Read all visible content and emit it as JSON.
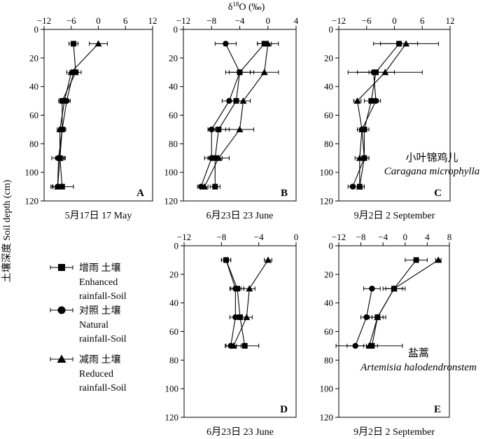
{
  "figure": {
    "top_axis_title": "δ18O (‰)",
    "y_axis_title": "土壤深度 Soil depth (cm)"
  },
  "legend": {
    "items": [
      {
        "marker": "square",
        "lines": [
          "增雨 土壤",
          "Enhanced",
          "rainfall-Soil"
        ]
      },
      {
        "marker": "circle",
        "lines": [
          "对照 土壤",
          "Natural",
          "rainfall-Soil"
        ]
      },
      {
        "marker": "triangle",
        "lines": [
          "减雨 土壤",
          "Reduced",
          "rainfall-Soil"
        ]
      }
    ]
  },
  "species": [
    {
      "cn": "小叶锦鸡儿",
      "latin": "Caragana microphylla"
    },
    {
      "cn": "盐蒿",
      "latin": "Artemisia halodendronstem"
    }
  ],
  "chart_data": [
    {
      "type": "line",
      "panel": "A",
      "caption": "5月17日 17 May",
      "xlim": [
        -12,
        12
      ],
      "xticks": [
        -12,
        -6,
        0,
        6,
        12
      ],
      "ylim": [
        0,
        120
      ],
      "yticks": [
        0,
        20,
        40,
        60,
        80,
        100,
        120
      ],
      "series": [
        {
          "marker": "square",
          "points": [
            {
              "depth": 10,
              "value": -5.5,
              "err": 1.0
            },
            {
              "depth": 30,
              "value": -5.0,
              "err": 1.2
            },
            {
              "depth": 50,
              "value": -8.0,
              "err": 0.8
            },
            {
              "depth": 70,
              "value": -8.0,
              "err": 0.8
            },
            {
              "depth": 90,
              "value": -8.5,
              "err": 1.0
            },
            {
              "depth": 110,
              "value": -8.0,
              "err": 2.5
            }
          ]
        },
        {
          "marker": "circle",
          "points": [
            {
              "depth": 30,
              "value": -5.5,
              "err": 0.8
            },
            {
              "depth": 50,
              "value": -7.0,
              "err": 0.8
            },
            {
              "depth": 70,
              "value": -8.0,
              "err": 0.6
            },
            {
              "depth": 90,
              "value": -8.8,
              "err": 1.5
            },
            {
              "depth": 110,
              "value": -9.0,
              "err": 1.0
            }
          ]
        },
        {
          "marker": "triangle",
          "points": [
            {
              "depth": 10,
              "value": 0.0,
              "err": 2.0
            },
            {
              "depth": 30,
              "value": -6.0,
              "err": 1.0
            },
            {
              "depth": 50,
              "value": -7.5,
              "err": 0.8
            },
            {
              "depth": 70,
              "value": -8.5,
              "err": 0.6
            },
            {
              "depth": 90,
              "value": -8.5,
              "err": 0.8
            },
            {
              "depth": 110,
              "value": -9.0,
              "err": 1.2
            }
          ]
        }
      ]
    },
    {
      "type": "line",
      "panel": "B",
      "caption": "6月23日 23 June",
      "xlim": [
        -12,
        4
      ],
      "xticks": [
        -12,
        -8,
        -4,
        0,
        4
      ],
      "ylim": [
        0,
        120
      ],
      "yticks": [
        0,
        20,
        40,
        60,
        80,
        100,
        120
      ],
      "series": [
        {
          "marker": "square",
          "points": [
            {
              "depth": 10,
              "value": -0.5,
              "err": 1.0
            },
            {
              "depth": 30,
              "value": -4.0,
              "err": 2.0
            },
            {
              "depth": 50,
              "value": -4.5,
              "err": 1.0
            },
            {
              "depth": 70,
              "value": -7.0,
              "err": 1.5
            },
            {
              "depth": 90,
              "value": -7.5,
              "err": 1.0
            },
            {
              "depth": 110,
              "value": -7.5,
              "err": 0.7
            }
          ]
        },
        {
          "marker": "circle",
          "points": [
            {
              "depth": 10,
              "value": -6.0,
              "err": 1.5
            },
            {
              "depth": 30,
              "value": -4.0,
              "err": 1.5
            },
            {
              "depth": 50,
              "value": -5.5,
              "err": 1.0
            },
            {
              "depth": 70,
              "value": -8.0,
              "err": 0.5
            },
            {
              "depth": 90,
              "value": -8.0,
              "err": 1.0
            },
            {
              "depth": 110,
              "value": -9.5,
              "err": 0.5
            }
          ]
        },
        {
          "marker": "triangle",
          "points": [
            {
              "depth": 10,
              "value": 0.0,
              "err": 1.5
            },
            {
              "depth": 30,
              "value": -0.5,
              "err": 2.0
            },
            {
              "depth": 50,
              "value": -3.5,
              "err": 1.0
            },
            {
              "depth": 70,
              "value": -4.0,
              "err": 2.0
            },
            {
              "depth": 90,
              "value": -7.0,
              "err": 1.5
            },
            {
              "depth": 110,
              "value": -9.0,
              "err": 0.5
            }
          ]
        }
      ]
    },
    {
      "type": "line",
      "panel": "C",
      "caption": "9月2日 2 September",
      "xlim": [
        -12,
        12
      ],
      "xticks": [
        -12,
        -6,
        0,
        6,
        12
      ],
      "ylim": [
        0,
        120
      ],
      "yticks": [
        0,
        20,
        40,
        60,
        80,
        100,
        120
      ],
      "series": [
        {
          "marker": "square",
          "points": [
            {
              "depth": 10,
              "value": 1.0,
              "err": 4.0
            },
            {
              "depth": 30,
              "value": -4.0,
              "err": 4.0
            },
            {
              "depth": 50,
              "value": -5.0,
              "err": 1.5
            },
            {
              "depth": 70,
              "value": -6.5,
              "err": 1.0
            },
            {
              "depth": 90,
              "value": -6.5,
              "err": 1.0
            },
            {
              "depth": 110,
              "value": -7.5,
              "err": 1.0
            }
          ]
        },
        {
          "marker": "circle",
          "points": [
            {
              "depth": 30,
              "value": -4.5,
              "err": 1.0
            },
            {
              "depth": 50,
              "value": -4.0,
              "err": 1.0
            },
            {
              "depth": 70,
              "value": -7.0,
              "err": 1.0
            },
            {
              "depth": 90,
              "value": -6.5,
              "err": 1.0
            },
            {
              "depth": 110,
              "value": -9.0,
              "err": 1.0
            }
          ]
        },
        {
          "marker": "triangle",
          "points": [
            {
              "depth": 10,
              "value": 2.5,
              "err": 7.0
            },
            {
              "depth": 30,
              "value": -2.0,
              "err": 8.0
            },
            {
              "depth": 50,
              "value": -8.0,
              "err": 0.8
            },
            {
              "depth": 70,
              "value": -7.0,
              "err": 1.0
            },
            {
              "depth": 90,
              "value": -7.5,
              "err": 1.0
            },
            {
              "depth": 110,
              "value": -7.5,
              "err": 1.0
            }
          ]
        }
      ]
    },
    {
      "type": "line",
      "panel": "D",
      "caption": "6月23日 23 June",
      "xlim": [
        -12,
        0
      ],
      "xticks": [
        -12,
        -8,
        -4,
        0
      ],
      "ylim": [
        0,
        120
      ],
      "yticks": [
        0,
        20,
        40,
        60,
        80,
        100,
        120
      ],
      "series": [
        {
          "marker": "square",
          "points": [
            {
              "depth": 10,
              "value": -7.5,
              "err": 0.5
            },
            {
              "depth": 30,
              "value": -6.3,
              "err": 0.7
            },
            {
              "depth": 50,
              "value": -6.0,
              "err": 0.7
            },
            {
              "depth": 70,
              "value": -5.5,
              "err": 1.5
            }
          ]
        },
        {
          "marker": "circle",
          "points": [
            {
              "depth": 10,
              "value": -7.5,
              "err": 0.5
            },
            {
              "depth": 30,
              "value": -6.5,
              "err": 0.6
            },
            {
              "depth": 50,
              "value": -6.5,
              "err": 0.6
            },
            {
              "depth": 70,
              "value": -7.0,
              "err": 0.6
            }
          ]
        },
        {
          "marker": "triangle",
          "points": [
            {
              "depth": 10,
              "value": -3.0,
              "err": 0.4
            },
            {
              "depth": 30,
              "value": -5.0,
              "err": 0.6
            },
            {
              "depth": 50,
              "value": -5.3,
              "err": 0.6
            },
            {
              "depth": 70,
              "value": -6.7,
              "err": 0.8
            }
          ]
        }
      ]
    },
    {
      "type": "line",
      "panel": "E",
      "caption": "9月2日 2 September",
      "xlim": [
        -12,
        8
      ],
      "xticks": [
        -12,
        -8,
        -4,
        0,
        4,
        8
      ],
      "ylim": [
        0,
        120
      ],
      "yticks": [
        0,
        20,
        40,
        60,
        80,
        100,
        120
      ],
      "series": [
        {
          "marker": "square",
          "points": [
            {
              "depth": 10,
              "value": 2.0,
              "err": 2.0
            },
            {
              "depth": 30,
              "value": -2.0,
              "err": 2.0
            },
            {
              "depth": 50,
              "value": -5.0,
              "err": 1.5
            },
            {
              "depth": 70,
              "value": -6.0,
              "err": 1.0
            }
          ]
        },
        {
          "marker": "circle",
          "points": [
            {
              "depth": 30,
              "value": -6.0,
              "err": 1.5
            },
            {
              "depth": 50,
              "value": -7.0,
              "err": 1.0
            },
            {
              "depth": 70,
              "value": -9.0,
              "err": 1.5
            }
          ]
        },
        {
          "marker": "triangle",
          "points": [
            {
              "depth": 10,
              "value": 6.0,
              "err": 0.5
            },
            {
              "depth": 30,
              "value": -2.0,
              "err": 1.5
            },
            {
              "depth": 50,
              "value": -5.0,
              "err": 1.0
            },
            {
              "depth": 70,
              "value": -6.5,
              "err": 6.0
            }
          ]
        }
      ]
    }
  ]
}
